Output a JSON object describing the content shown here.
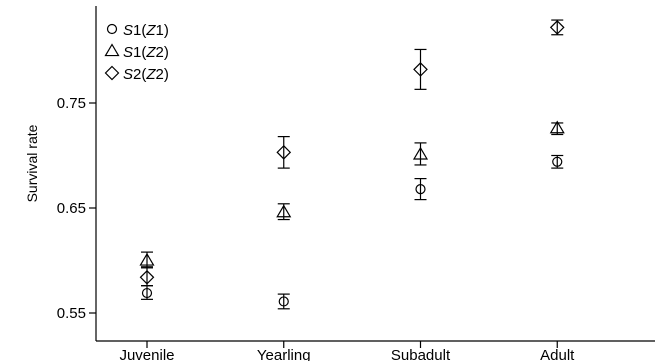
{
  "chart_data": {
    "type": "scatter",
    "title": "",
    "xlabel": "",
    "ylabel": "Survival rate",
    "categories": [
      "Juvenile",
      "Yearling",
      "Subadult",
      "Adult"
    ],
    "yticks": [
      "0.55",
      "0.65",
      "0.75"
    ],
    "ylim": [
      0.545,
      0.835
    ],
    "grid": false,
    "legend_position": "top-left",
    "series": [
      {
        "name": "S1(Z1)",
        "marker": "circle",
        "legend_parts": [
          [
            "S",
            "i"
          ],
          [
            "1(",
            "n"
          ],
          [
            "Z",
            "i"
          ],
          [
            "1)",
            "n"
          ]
        ],
        "values": [
          0.569,
          0.561,
          0.668,
          0.694
        ],
        "lower": [
          0.563,
          0.554,
          0.658,
          0.688
        ],
        "upper": [
          0.576,
          0.568,
          0.678,
          0.7
        ]
      },
      {
        "name": "S1(Z2)",
        "marker": "triangle",
        "legend_parts": [
          [
            "S",
            "i"
          ],
          [
            "1(",
            "n"
          ],
          [
            "Z",
            "i"
          ],
          [
            "2)",
            "n"
          ]
        ],
        "values": [
          0.6,
          0.646,
          0.701,
          0.726
        ],
        "lower": [
          0.593,
          0.639,
          0.691,
          0.72
        ],
        "upper": [
          0.608,
          0.654,
          0.712,
          0.731
        ]
      },
      {
        "name": "S2(Z2)",
        "marker": "diamond",
        "legend_parts": [
          [
            "S",
            "i"
          ],
          [
            "2(",
            "n"
          ],
          [
            "Z",
            "i"
          ],
          [
            "2)",
            "n"
          ]
        ],
        "values": [
          0.584,
          0.703,
          0.782,
          0.822
        ],
        "lower": [
          0.576,
          0.688,
          0.763,
          0.815
        ],
        "upper": [
          0.594,
          0.718,
          0.801,
          0.829
        ]
      }
    ]
  }
}
